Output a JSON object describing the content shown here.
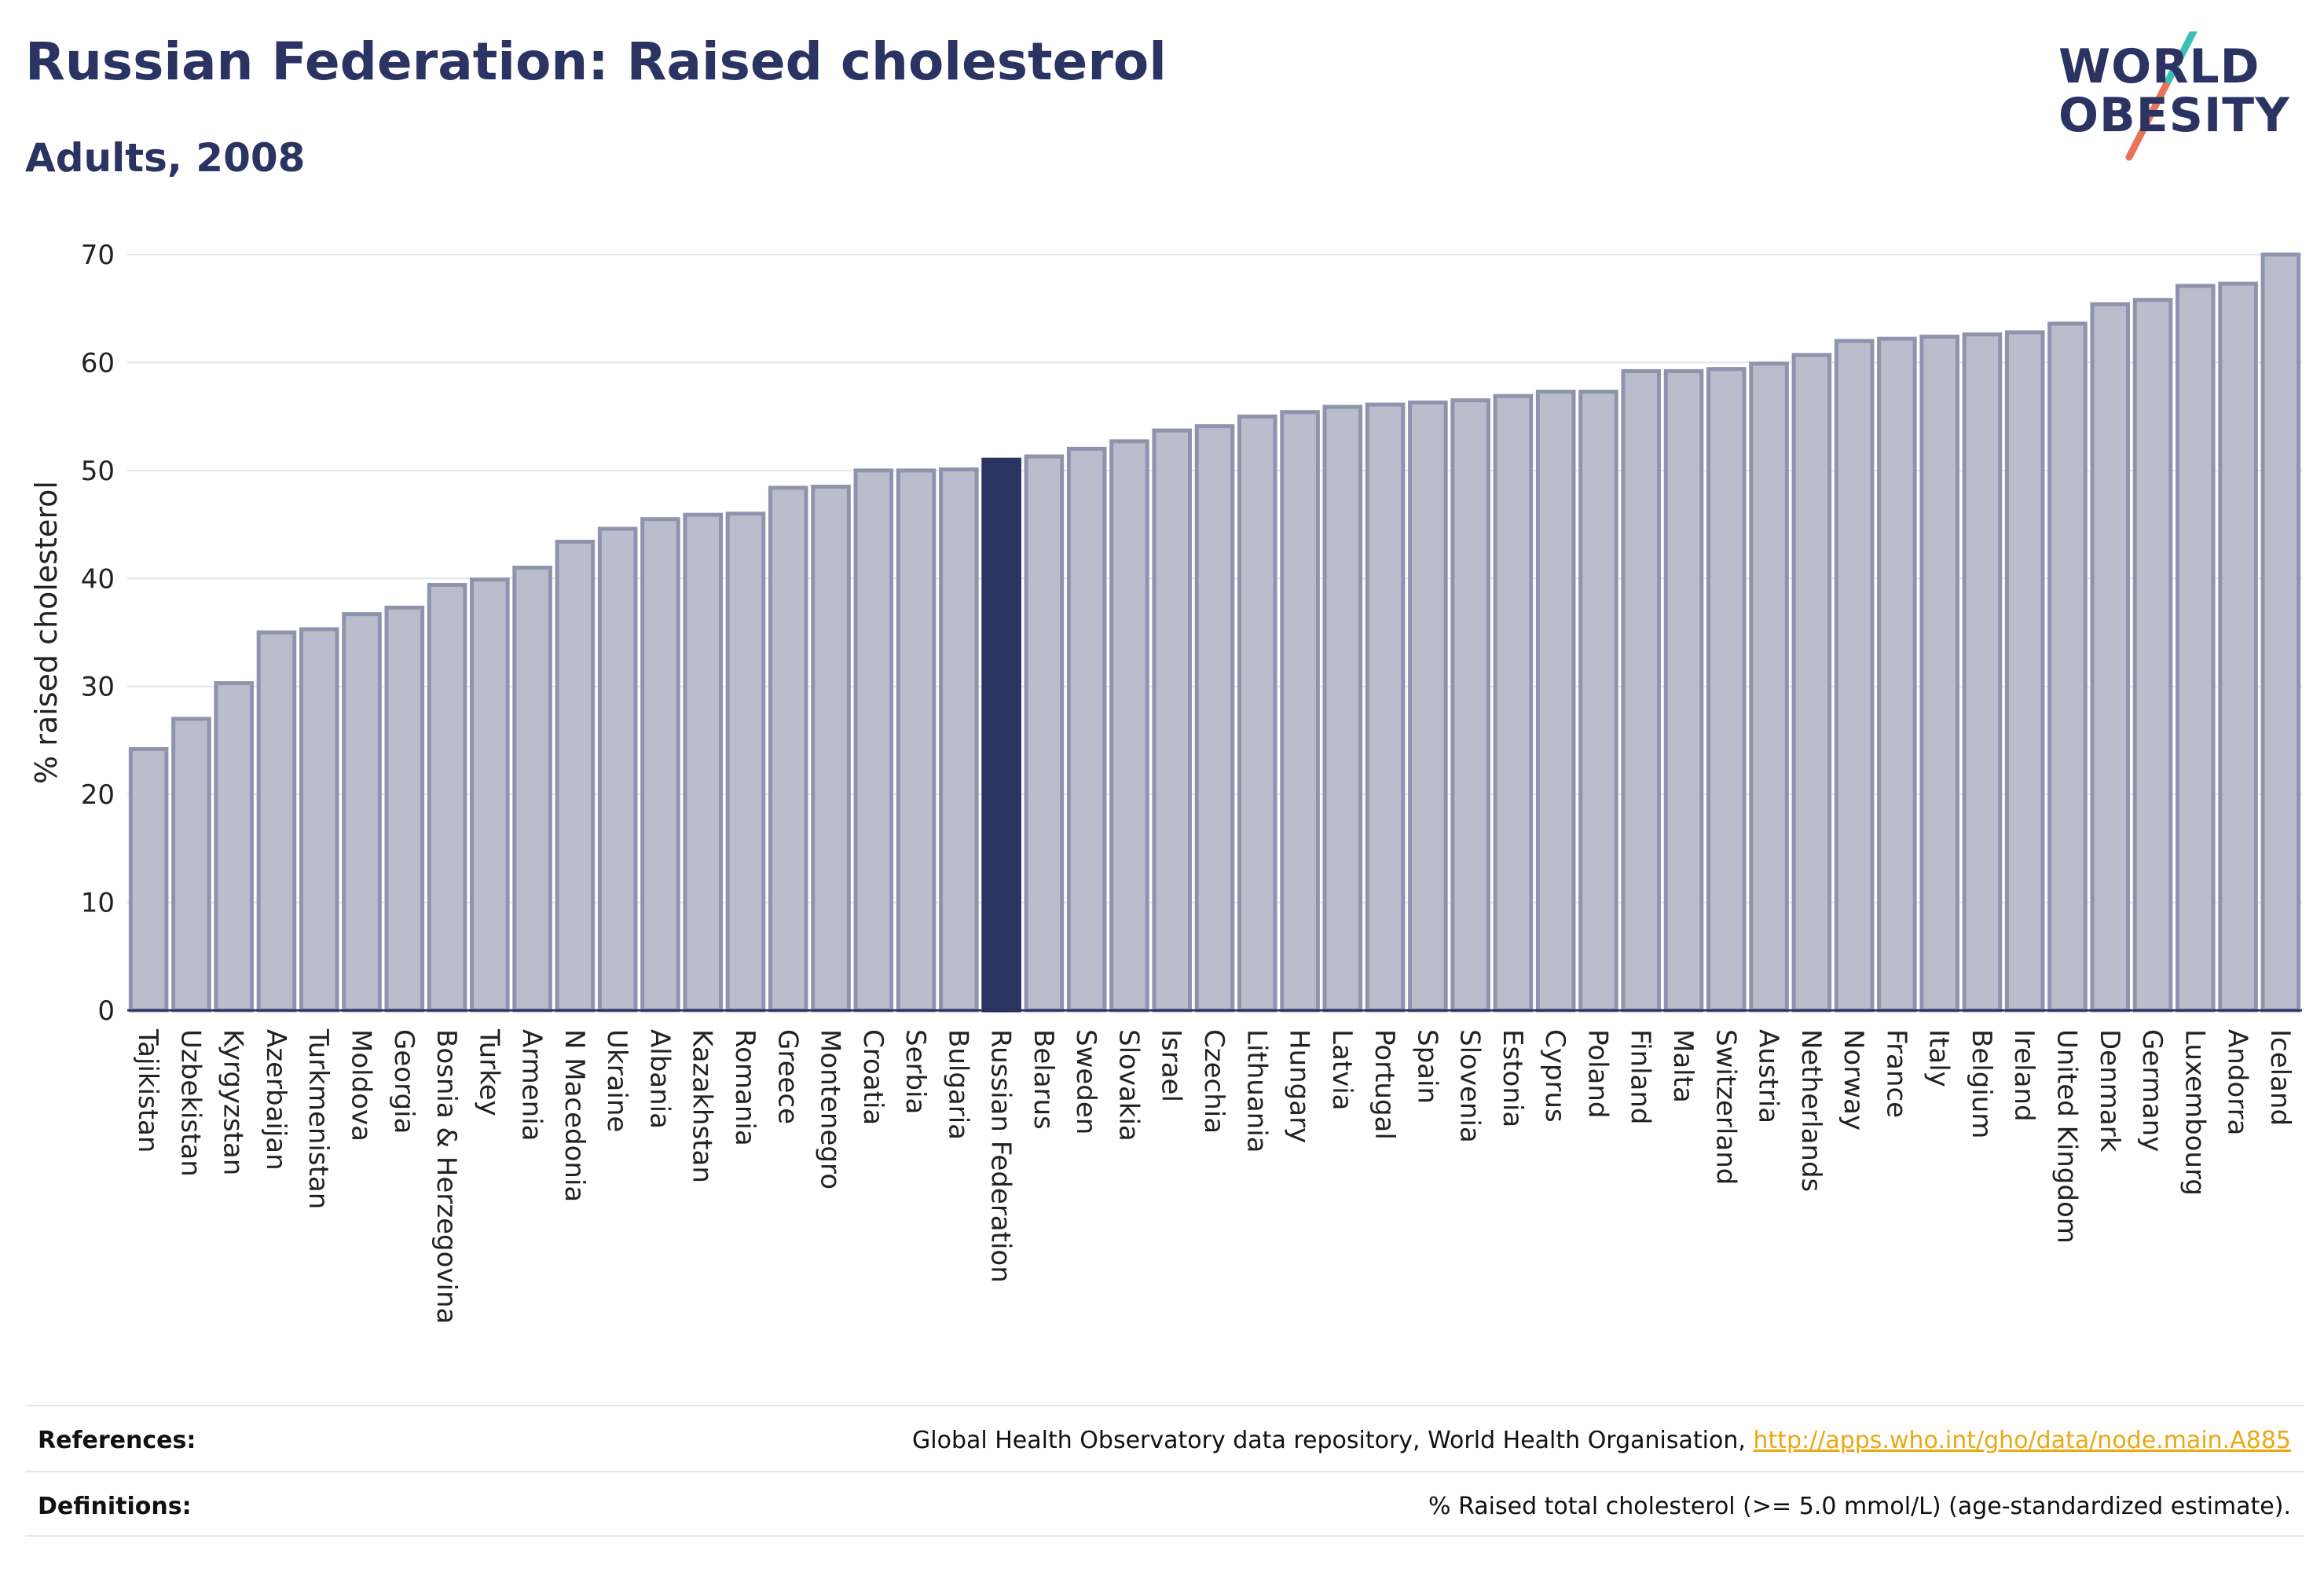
{
  "header": {
    "title": "Russian Federation: Raised cholesterol",
    "subtitle": "Adults, 2008"
  },
  "logo": {
    "line1": "WORLD",
    "line2": "OBESITY",
    "text_color": "#2a3361",
    "slash_colors": [
      "#3bbfb7",
      "#e8735a"
    ]
  },
  "chart_data": {
    "type": "bar",
    "ylabel": "% raised cholesterol",
    "ylim": [
      0,
      70
    ],
    "yticks": [
      0,
      10,
      20,
      30,
      40,
      50,
      60,
      70
    ],
    "grid": true,
    "highlight": "Russian Federation",
    "colors": {
      "bar": "#b9bdcc",
      "bar_border": "#8e94ad",
      "highlight": "#2a3361"
    },
    "categories": [
      "Tajikistan",
      "Uzbekistan",
      "Kyrgyzstan",
      "Azerbaijan",
      "Turkmenistan",
      "Moldova",
      "Georgia",
      "Bosnia & Herzegovina",
      "Turkey",
      "Armenia",
      "N Macedonia",
      "Ukraine",
      "Albania",
      "Kazakhstan",
      "Romania",
      "Greece",
      "Montenegro",
      "Croatia",
      "Serbia",
      "Bulgaria",
      "Russian Federation",
      "Belarus",
      "Sweden",
      "Slovakia",
      "Israel",
      "Czechia",
      "Lithuania",
      "Hungary",
      "Latvia",
      "Portugal",
      "Spain",
      "Slovenia",
      "Estonia",
      "Cyprus",
      "Poland",
      "Finland",
      "Malta",
      "Switzerland",
      "Austria",
      "Netherlands",
      "Norway",
      "France",
      "Italy",
      "Belgium",
      "Ireland",
      "United Kingdom",
      "Denmark",
      "Germany",
      "Luxembourg",
      "Andorra",
      "Iceland"
    ],
    "values": [
      24.2,
      27,
      30.3,
      35,
      35.3,
      36.7,
      37.3,
      39.4,
      39.9,
      41,
      43.4,
      44.6,
      45.5,
      45.9,
      46,
      48.4,
      48.5,
      50,
      50,
      50.1,
      51,
      51.3,
      52,
      52.7,
      53.7,
      54.1,
      55,
      55.4,
      55.9,
      56.1,
      56.3,
      56.5,
      56.9,
      57.3,
      57.3,
      59.2,
      59.2,
      59.4,
      59.9,
      60.7,
      62,
      62.2,
      62.4,
      62.6,
      62.8,
      63.6,
      65.4,
      65.8,
      67.1,
      67.3,
      70
    ]
  },
  "footer": {
    "references_label": "References:",
    "references_text": "Global Health Observatory data repository, World Health Organisation, ",
    "references_link": "http://apps.who.int/gho/data/node.main.A885",
    "definitions_label": "Definitions:",
    "definitions_text": "% Raised total cholesterol (>= 5.0 mmol/L) (age-standardized estimate)."
  }
}
